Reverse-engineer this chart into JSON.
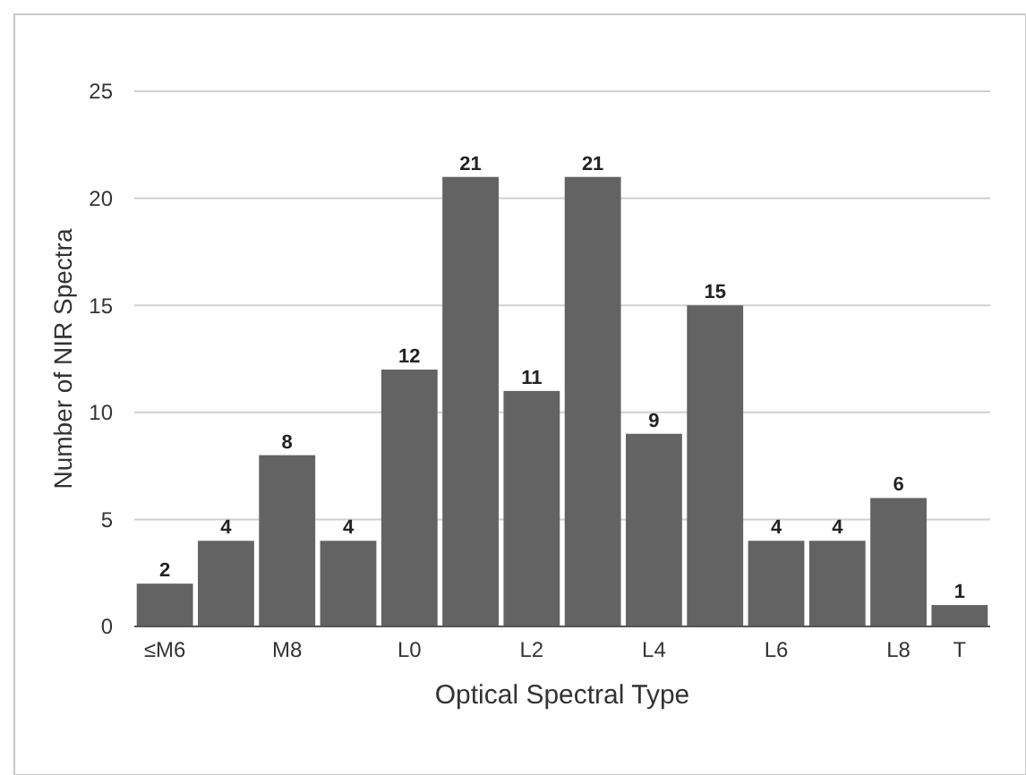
{
  "chart_data": {
    "type": "bar",
    "xlabel": "Optical Spectral Type",
    "ylabel": "Number of NIR Spectra",
    "categories": [
      "≤M6",
      null,
      "M8",
      null,
      "L0",
      null,
      "L2",
      null,
      "L4",
      null,
      "L6",
      null,
      "L8",
      "T"
    ],
    "values": [
      2,
      4,
      8,
      4,
      12,
      21,
      11,
      21,
      9,
      15,
      4,
      4,
      6,
      1
    ],
    "color": "#636363",
    "ylim": [
      0,
      25
    ],
    "yticks": [
      0,
      5,
      10,
      15,
      20,
      25
    ],
    "grid": "y",
    "data_labels": true
  }
}
